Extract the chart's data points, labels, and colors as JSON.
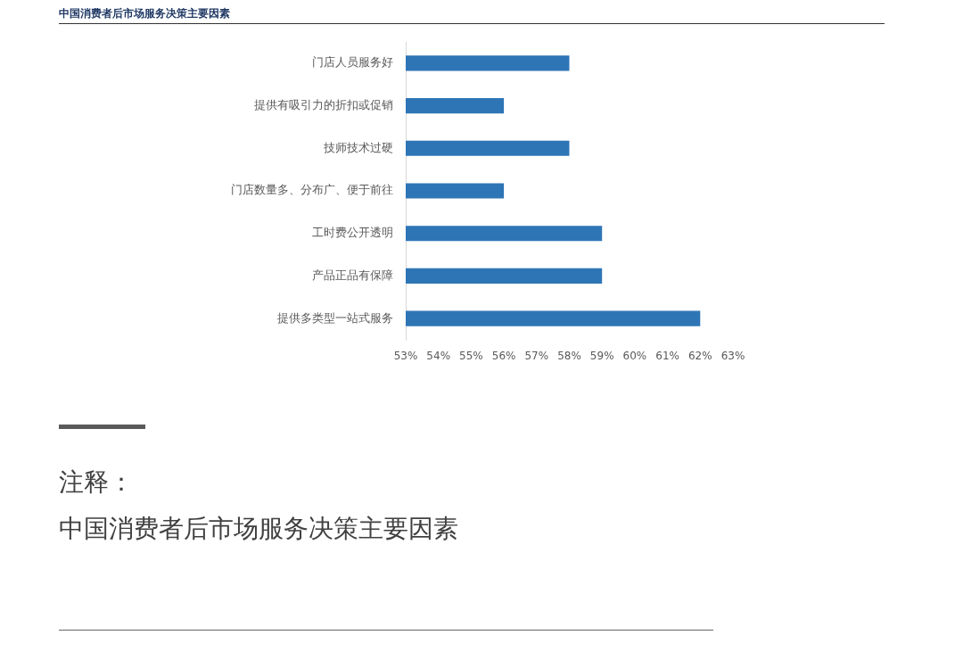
{
  "chart_data": {
    "type": "bar",
    "orientation": "horizontal",
    "title": "中国消费者后市场服务决策主要因素",
    "categories": [
      "门店人员服务好",
      "提供有吸引力的折扣或促销",
      "技师技术过硬",
      "门店数量多、分布广、便于前往",
      "工时费公开透明",
      "产品正品有保障",
      "提供多类型一站式服务"
    ],
    "values": [
      58,
      56,
      58,
      56,
      59,
      59,
      62
    ],
    "color": "#2e75b6",
    "xlim": [
      53,
      63
    ],
    "xticks": [
      {
        "value": 53,
        "label": "53%"
      },
      {
        "value": 54,
        "label": "54%"
      },
      {
        "value": 55,
        "label": "55%"
      },
      {
        "value": 56,
        "label": "56%"
      },
      {
        "value": 57,
        "label": "57%"
      },
      {
        "value": 58,
        "label": "58%"
      },
      {
        "value": 59,
        "label": "59%"
      },
      {
        "value": 60,
        "label": "60%"
      },
      {
        "value": 61,
        "label": "61%"
      },
      {
        "value": 62,
        "label": "62%"
      },
      {
        "value": 63,
        "label": "63%"
      }
    ],
    "grid": false,
    "legend": false,
    "annotations": [
      "注释：",
      "中国消费者后市场服务决策主要因素"
    ]
  }
}
